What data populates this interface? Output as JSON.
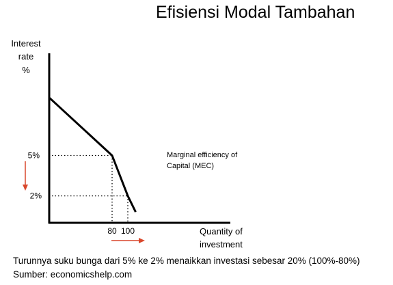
{
  "slide_title": "Efisiensi Modal Tambahan",
  "caption": {
    "line1": "Turunnya suku bunga dari 5% ke 2% menaikkan investasi sebesar 20% (100%-80%)",
    "line2": "Sumber: economicshelp.com"
  },
  "chart_data": {
    "type": "line",
    "ylabel": [
      "Interest",
      "rate",
      "%"
    ],
    "xlabel": [
      "Quantity of",
      "investment"
    ],
    "series": [
      {
        "name": "Marginal efficiency of Capital (MEC)",
        "x": [
          0,
          80,
          100,
          110
        ],
        "y": [
          9.3,
          5,
          2,
          0.8
        ]
      }
    ],
    "marked_points": [
      {
        "x": 80,
        "y": 5
      },
      {
        "x": 100,
        "y": 2
      }
    ],
    "x_ticks": [
      {
        "value": 80,
        "label": "80"
      },
      {
        "value": 100,
        "label": "100"
      }
    ],
    "y_ticks": [
      {
        "value": 5,
        "label": "5%"
      },
      {
        "value": 2,
        "label": "2%"
      }
    ],
    "series_label": [
      "Marginal efficiency of",
      "Capital (MEC)"
    ],
    "arrow_color": "#d9472b",
    "line_color": "#000000"
  }
}
